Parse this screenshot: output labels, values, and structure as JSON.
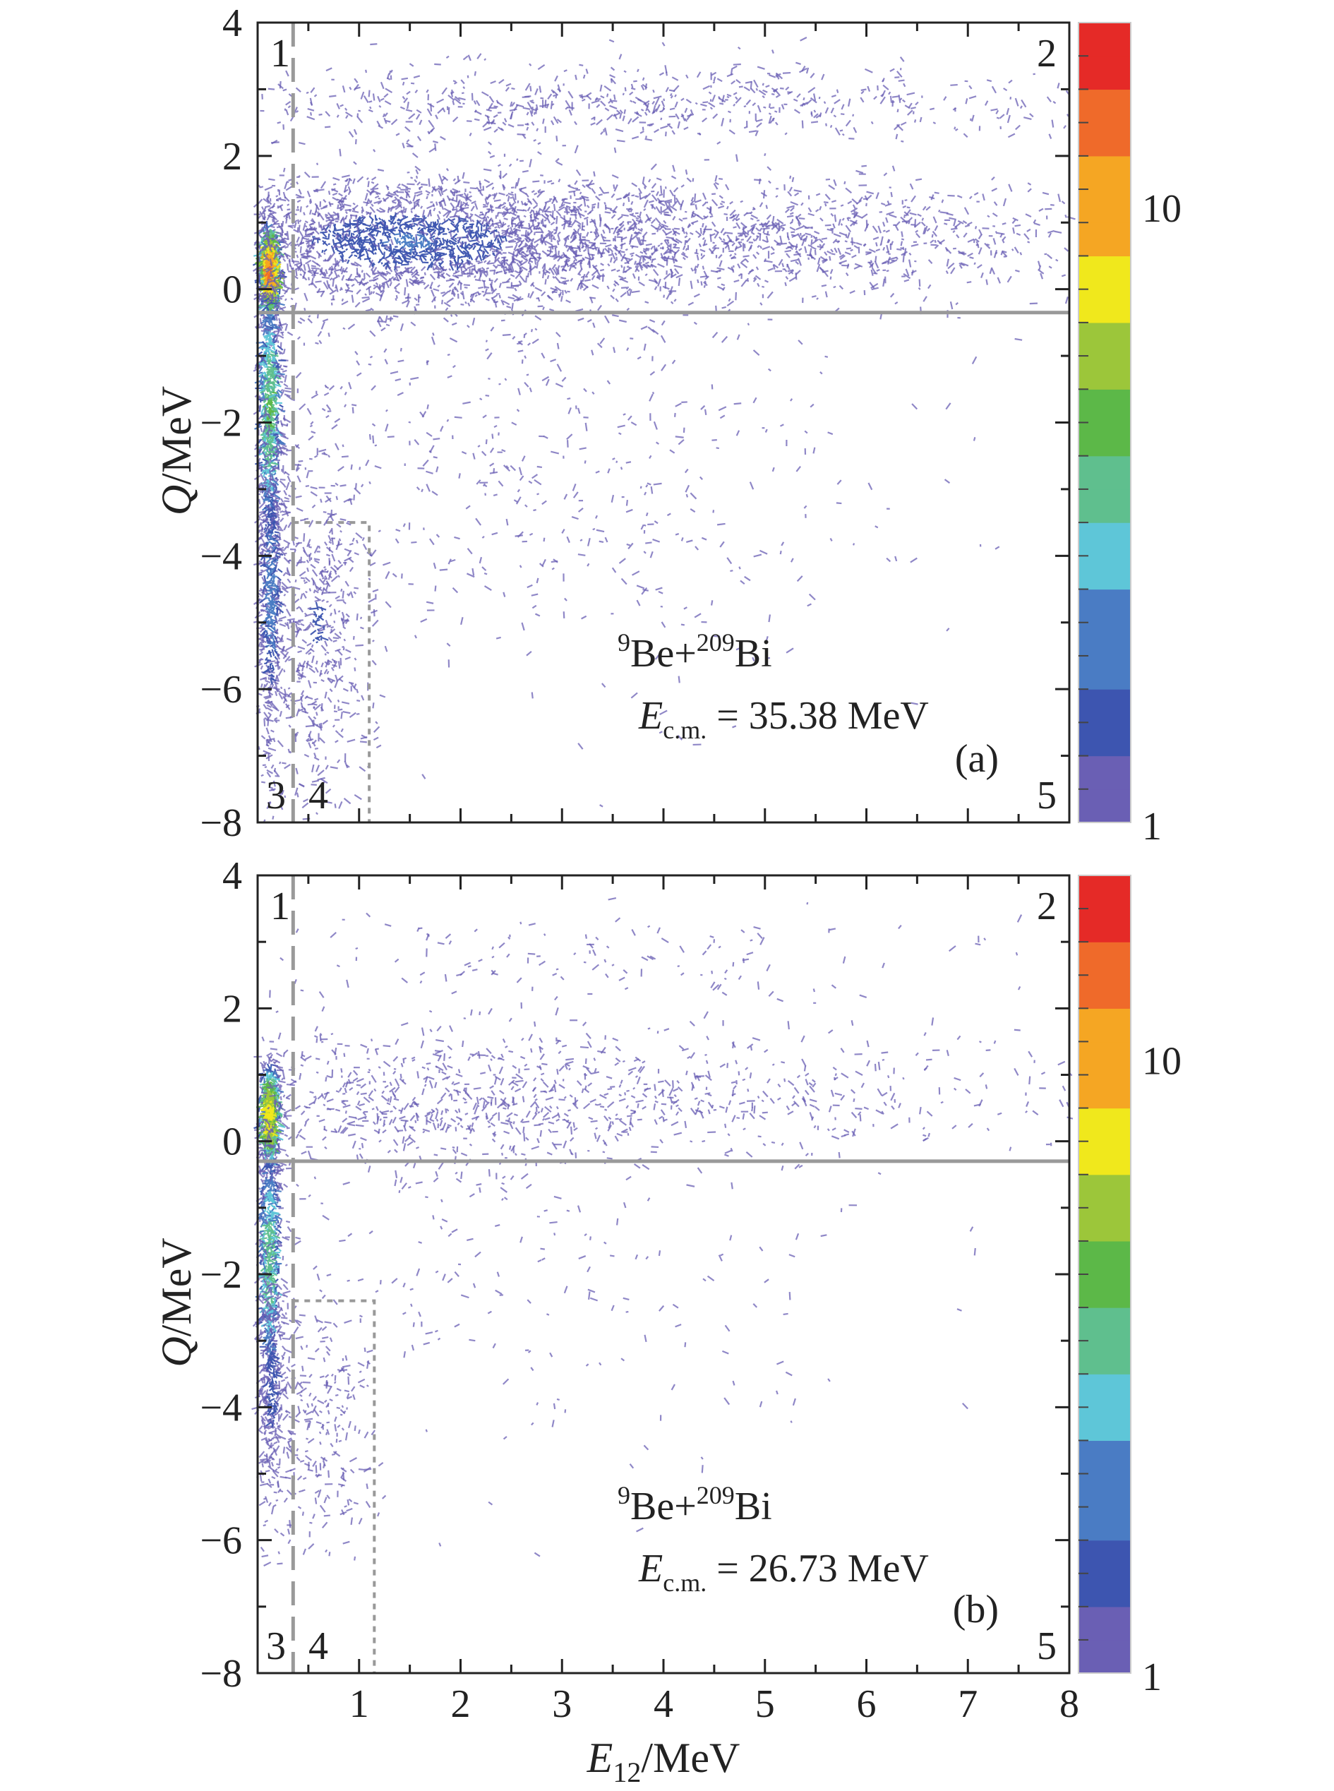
{
  "chart_data": [
    {
      "type": "heatmap",
      "panel_label": "(a)",
      "reaction": {
        "a_mass": "9",
        "a_sym": "Be",
        "plus": "+",
        "b_mass": "209",
        "b_sym": "Bi"
      },
      "energy": {
        "sym": "E",
        "sub": "c.m.",
        "value": "= 35.38 MeV"
      },
      "x": {
        "label_sym": "E",
        "label_sub": "12",
        "label_unit": "/MeV",
        "range": [
          0,
          8
        ],
        "ticks": [
          1,
          2,
          3,
          4,
          5,
          6,
          7,
          8
        ]
      },
      "y": {
        "label_sym": "Q",
        "label_unit": "/MeV",
        "range": [
          -8,
          4
        ],
        "ticks": [
          -8,
          -6,
          -4,
          -2,
          0,
          2,
          4
        ],
        "tick_labels": [
          "−8",
          "−6",
          "−4",
          "−2",
          "0",
          "2",
          "4"
        ]
      },
      "colorbar": {
        "scale": "log",
        "range": [
          1,
          20
        ],
        "labels": [
          "10",
          "1"
        ]
      },
      "region_labels": [
        "1",
        "2",
        "3",
        "4",
        "5"
      ],
      "gates": {
        "q_line": -0.35,
        "e12_dashed": 0.35,
        "box": {
          "x": [
            0.35,
            1.1
          ],
          "y": [
            -8,
            -3.5
          ]
        }
      },
      "clusters": [
        {
          "x": 0.12,
          "y": 0.3,
          "sx": 0.05,
          "sy": 0.35,
          "n": 900,
          "w": 14
        },
        {
          "x": 0.12,
          "y": -1.8,
          "sx": 0.06,
          "sy": 1.1,
          "n": 800,
          "w": 4
        },
        {
          "x": 0.13,
          "y": -4.5,
          "sx": 0.07,
          "sy": 1.3,
          "n": 600,
          "w": 2
        },
        {
          "x": 1.5,
          "y": 0.75,
          "sx": 1.2,
          "sy": 0.5,
          "n": 2200,
          "w": 1.6
        },
        {
          "x": 4.5,
          "y": 0.8,
          "sx": 2.0,
          "sy": 0.45,
          "n": 1400,
          "w": 1.1
        },
        {
          "x": 3.5,
          "y": 2.8,
          "sx": 2.4,
          "sy": 0.3,
          "n": 700,
          "w": 1
        },
        {
          "x": 0.6,
          "y": -5.0,
          "sx": 0.25,
          "sy": 1.4,
          "n": 550,
          "w": 1.2
        },
        {
          "x": 2.5,
          "y": -2.5,
          "sx": 1.8,
          "sy": 1.8,
          "n": 600,
          "w": 1
        }
      ]
    },
    {
      "type": "heatmap",
      "panel_label": "(b)",
      "reaction": {
        "a_mass": "9",
        "a_sym": "Be",
        "plus": "+",
        "b_mass": "209",
        "b_sym": "Bi"
      },
      "energy": {
        "sym": "E",
        "sub": "c.m.",
        "value": "= 26.73 MeV"
      },
      "x": {
        "label_sym": "E",
        "label_sub": "12",
        "label_unit": "/MeV",
        "range": [
          0,
          8
        ],
        "ticks": [
          1,
          2,
          3,
          4,
          5,
          6,
          7,
          8
        ]
      },
      "y": {
        "label_sym": "Q",
        "label_unit": "/MeV",
        "range": [
          -8,
          4
        ],
        "ticks": [
          -8,
          -6,
          -4,
          -2,
          0,
          2,
          4
        ],
        "tick_labels": [
          "−8",
          "−6",
          "−4",
          "−2",
          "0",
          "2",
          "4"
        ]
      },
      "colorbar": {
        "scale": "log",
        "range": [
          1,
          20
        ],
        "labels": [
          "10",
          "1"
        ]
      },
      "region_labels": [
        "1",
        "2",
        "3",
        "4",
        "5"
      ],
      "gates": {
        "q_line": -0.3,
        "e12_dashed": 0.35,
        "box": {
          "x": [
            0.35,
            1.15
          ],
          "y": [
            -8,
            -2.4
          ]
        }
      },
      "clusters": [
        {
          "x": 0.12,
          "y": 0.4,
          "sx": 0.05,
          "sy": 0.4,
          "n": 700,
          "w": 9
        },
        {
          "x": 0.12,
          "y": -1.8,
          "sx": 0.06,
          "sy": 1.1,
          "n": 650,
          "w": 3.5
        },
        {
          "x": 0.14,
          "y": -3.6,
          "sx": 0.07,
          "sy": 0.9,
          "n": 300,
          "w": 1.5
        },
        {
          "x": 1.8,
          "y": 0.6,
          "sx": 1.4,
          "sy": 0.55,
          "n": 700,
          "w": 1
        },
        {
          "x": 4.8,
          "y": 0.7,
          "sx": 2.0,
          "sy": 0.5,
          "n": 350,
          "w": 1
        },
        {
          "x": 3.5,
          "y": 2.8,
          "sx": 2.4,
          "sy": 0.4,
          "n": 150,
          "w": 1
        },
        {
          "x": 0.6,
          "y": -4.3,
          "sx": 0.25,
          "sy": 1.0,
          "n": 250,
          "w": 1
        },
        {
          "x": 2.5,
          "y": -2.0,
          "sx": 1.8,
          "sy": 1.5,
          "n": 200,
          "w": 1
        }
      ]
    }
  ]
}
